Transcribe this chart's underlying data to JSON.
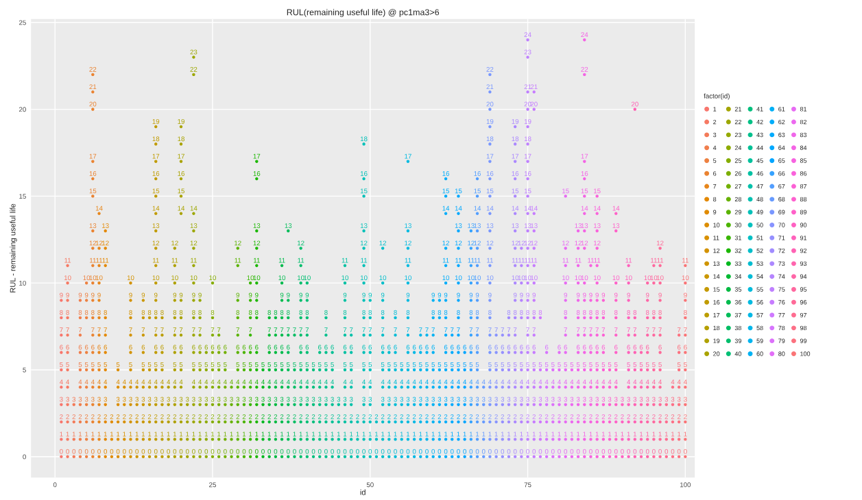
{
  "chart_data": {
    "type": "scatter",
    "title": "RUL(remaining useful life) @ pc1ma3>6",
    "xlabel": "id",
    "ylabel": "RUL - remaining useful life",
    "legend_title": "factor(id)",
    "xlim": [
      -3.8,
      101.5
    ],
    "xticks": [
      0,
      25,
      50,
      75,
      100
    ],
    "ylim": [
      -1.2,
      25.2
    ],
    "yticks": [
      0,
      5,
      10,
      15,
      20,
      25
    ],
    "grid": true,
    "legend": "right",
    "data_labels": true,
    "marker": "circle",
    "series": [
      {
        "name": "1",
        "color": "#f8766d",
        "x": [
          1,
          1,
          1,
          1,
          1,
          1,
          1,
          1,
          1,
          1
        ],
        "values": [
          0,
          1,
          2,
          3,
          4,
          5,
          6,
          7,
          8,
          9
        ]
      },
      {
        "name": "2",
        "color": "#f67963",
        "x": [
          2,
          2,
          2,
          2,
          2,
          2,
          2,
          2,
          2,
          2,
          2,
          2
        ],
        "values": [
          0,
          1,
          2,
          3,
          4,
          5,
          6,
          7,
          8,
          9,
          10,
          11
        ]
      },
      {
        "name": "3",
        "color": "#f37b59",
        "x": [
          3,
          3,
          3,
          3
        ],
        "values": [
          0,
          1,
          2,
          3
        ]
      },
      {
        "name": "4",
        "color": "#f07e4d",
        "x": [
          4,
          4,
          4,
          4,
          4,
          4,
          4,
          4,
          4,
          4
        ],
        "values": [
          0,
          1,
          2,
          3,
          4,
          5,
          6,
          7,
          8,
          9
        ]
      },
      {
        "name": "5",
        "color": "#ed8141",
        "x": [
          5,
          5,
          5,
          5,
          5,
          5,
          5,
          5,
          5,
          5
        ],
        "values": [
          0,
          1,
          2,
          3,
          4,
          5,
          6,
          8,
          9,
          10
        ]
      },
      {
        "name": "6",
        "color": "#ea8331",
        "x": [
          6,
          6,
          6,
          6,
          6,
          6,
          6,
          6,
          6,
          6,
          6,
          6,
          6,
          6,
          6,
          6,
          6,
          6,
          6,
          6
        ],
        "values": [
          0,
          1,
          2,
          3,
          4,
          5,
          6,
          7,
          8,
          9,
          10,
          11,
          12,
          13,
          15,
          16,
          17,
          20,
          21,
          22
        ]
      },
      {
        "name": "7",
        "color": "#e7861b",
        "x": [
          7,
          7,
          7,
          7,
          7,
          7,
          7,
          7,
          7,
          7,
          7,
          7,
          7,
          7
        ],
        "values": [
          0,
          1,
          2,
          3,
          4,
          5,
          6,
          7,
          8,
          9,
          10,
          11,
          12,
          14
        ]
      },
      {
        "name": "8",
        "color": "#e38800",
        "x": [
          8,
          8,
          8,
          8,
          8,
          8,
          8,
          8,
          8,
          8,
          8,
          8
        ],
        "values": [
          0,
          1,
          2,
          3,
          4,
          5,
          6,
          7,
          8,
          11,
          12,
          13
        ]
      },
      {
        "name": "9",
        "color": "#e08b00",
        "x": [
          9,
          9,
          9
        ],
        "values": [
          0,
          1,
          2
        ]
      },
      {
        "name": "10",
        "color": "#dc8d00",
        "x": [
          10,
          10,
          10,
          10,
          10,
          10
        ],
        "values": [
          0,
          1,
          2,
          3,
          4,
          5
        ]
      },
      {
        "name": "11",
        "color": "#d89000",
        "x": [
          11,
          11,
          11,
          11,
          11
        ],
        "values": [
          0,
          1,
          2,
          3,
          4
        ]
      },
      {
        "name": "12",
        "color": "#d39200",
        "x": [
          12,
          12,
          12,
          12,
          12,
          12,
          12,
          12,
          12,
          12,
          12
        ],
        "values": [
          0,
          1,
          2,
          3,
          4,
          5,
          6,
          7,
          8,
          9,
          10
        ]
      },
      {
        "name": "13",
        "color": "#cf9400",
        "x": [
          13,
          13,
          13,
          13,
          13
        ],
        "values": [
          0,
          1,
          2,
          3,
          4
        ]
      },
      {
        "name": "14",
        "color": "#ca9700",
        "x": [
          14,
          14,
          14,
          14,
          14,
          14,
          14,
          14,
          14,
          14
        ],
        "values": [
          0,
          1,
          2,
          3,
          4,
          5,
          6,
          7,
          8,
          9
        ]
      },
      {
        "name": "15",
        "color": "#c59900",
        "x": [
          15,
          15,
          15,
          15,
          15,
          15,
          15
        ],
        "values": [
          0,
          1,
          2,
          3,
          4,
          5,
          8
        ]
      },
      {
        "name": "16",
        "color": "#c09b00",
        "x": [
          16,
          16,
          16,
          16,
          16,
          16,
          16,
          16,
          16,
          16,
          16,
          16,
          16,
          16,
          16,
          16,
          16,
          16,
          16,
          16
        ],
        "values": [
          0,
          1,
          2,
          3,
          4,
          5,
          6,
          7,
          8,
          9,
          10,
          11,
          12,
          13,
          14,
          15,
          16,
          17,
          18,
          19
        ]
      },
      {
        "name": "17",
        "color": "#bb9d00",
        "x": [
          17,
          17,
          17,
          17,
          17,
          17,
          17,
          17,
          17
        ],
        "values": [
          0,
          1,
          2,
          3,
          4,
          5,
          6,
          7,
          8
        ]
      },
      {
        "name": "18",
        "color": "#b59f00",
        "x": [
          18,
          18,
          18,
          18,
          18
        ],
        "values": [
          0,
          1,
          2,
          3,
          4
        ]
      },
      {
        "name": "19",
        "color": "#afa100",
        "x": [
          19,
          19,
          19,
          19,
          19,
          19,
          19,
          19,
          19,
          19,
          19,
          19,
          19
        ],
        "values": [
          0,
          1,
          2,
          3,
          4,
          5,
          6,
          7,
          8,
          9,
          10,
          11,
          12
        ]
      },
      {
        "name": "20",
        "color": "#a9a300",
        "x": [
          20,
          20,
          20,
          20,
          20,
          20,
          20,
          20,
          20,
          20,
          20,
          20,
          20,
          20,
          20,
          20
        ],
        "values": [
          0,
          1,
          2,
          3,
          4,
          5,
          6,
          7,
          8,
          9,
          14,
          15,
          16,
          17,
          18,
          19
        ]
      },
      {
        "name": "21",
        "color": "#a3a500",
        "x": [
          21,
          21,
          21,
          21
        ],
        "values": [
          0,
          1,
          2,
          3
        ]
      },
      {
        "name": "22",
        "color": "#9ca700",
        "x": [
          22,
          22,
          22,
          22,
          22,
          22,
          22,
          22,
          22,
          22,
          22,
          22,
          22,
          22,
          22,
          22,
          22
        ],
        "values": [
          0,
          1,
          2,
          3,
          4,
          5,
          6,
          7,
          8,
          9,
          10,
          11,
          12,
          13,
          14,
          22,
          23
        ]
      },
      {
        "name": "23",
        "color": "#95a900",
        "x": [
          23,
          23,
          23,
          23,
          23,
          23,
          23,
          23,
          23,
          23
        ],
        "values": [
          0,
          1,
          2,
          3,
          4,
          5,
          6,
          7,
          8,
          9
        ]
      },
      {
        "name": "24",
        "color": "#8dab00",
        "x": [
          24,
          24,
          24,
          24,
          24,
          24,
          24
        ],
        "values": [
          0,
          1,
          2,
          3,
          4,
          5,
          6
        ]
      },
      {
        "name": "25",
        "color": "#85ad00",
        "x": [
          25,
          25,
          25,
          25,
          25,
          25,
          25,
          25,
          25,
          25
        ],
        "values": [
          0,
          1,
          2,
          3,
          4,
          5,
          6,
          7,
          8,
          10
        ]
      },
      {
        "name": "26",
        "color": "#7cae00",
        "x": [
          26,
          26,
          26,
          26,
          26,
          26,
          26,
          26
        ],
        "values": [
          0,
          1,
          2,
          3,
          4,
          5,
          6,
          7
        ]
      },
      {
        "name": "27",
        "color": "#72b000",
        "x": [
          27,
          27,
          27,
          27,
          27,
          27,
          27
        ],
        "values": [
          0,
          1,
          2,
          3,
          4,
          5,
          6
        ]
      },
      {
        "name": "28",
        "color": "#67b100",
        "x": [
          28,
          28,
          28,
          28,
          28
        ],
        "values": [
          0,
          1,
          2,
          3,
          4
        ]
      },
      {
        "name": "29",
        "color": "#5bb300",
        "x": [
          29,
          29,
          29,
          29,
          29,
          29,
          29,
          29,
          29,
          29,
          29,
          29
        ],
        "values": [
          0,
          1,
          2,
          3,
          4,
          5,
          6,
          7,
          8,
          9,
          11,
          12
        ]
      },
      {
        "name": "30",
        "color": "#4cb400",
        "x": [
          30,
          30,
          30,
          30,
          30,
          30,
          30
        ],
        "values": [
          0,
          1,
          2,
          3,
          4,
          5,
          6
        ]
      },
      {
        "name": "31",
        "color": "#39b600",
        "x": [
          31,
          31,
          31,
          31,
          31,
          31,
          31,
          31,
          31,
          31,
          31
        ],
        "values": [
          0,
          1,
          2,
          3,
          4,
          5,
          6,
          7,
          8,
          9,
          10
        ]
      },
      {
        "name": "32",
        "color": "#1bb700",
        "x": [
          32,
          32,
          32,
          32,
          32,
          32,
          32,
          32,
          32,
          32,
          32,
          32,
          32,
          32,
          32
        ],
        "values": [
          0,
          1,
          2,
          3,
          4,
          5,
          6,
          8,
          9,
          10,
          11,
          12,
          13,
          16,
          17
        ]
      },
      {
        "name": "33",
        "color": "#00b81f",
        "x": [
          33,
          33,
          33,
          33,
          33,
          33
        ],
        "values": [
          0,
          1,
          2,
          3,
          4,
          5
        ]
      },
      {
        "name": "34",
        "color": "#00b933",
        "x": [
          34,
          34,
          34,
          34,
          34,
          34,
          34,
          34,
          34
        ],
        "values": [
          0,
          1,
          2,
          3,
          4,
          5,
          6,
          7,
          8
        ]
      },
      {
        "name": "35",
        "color": "#00ba42",
        "x": [
          35,
          35,
          35,
          35,
          35,
          35,
          35,
          35,
          35
        ],
        "values": [
          0,
          1,
          2,
          3,
          4,
          5,
          6,
          7,
          8
        ]
      },
      {
        "name": "36",
        "color": "#00bb4e",
        "x": [
          36,
          36,
          36,
          36,
          36,
          36,
          36,
          36,
          36,
          36,
          36,
          36
        ],
        "values": [
          0,
          1,
          2,
          3,
          4,
          5,
          6,
          7,
          8,
          9,
          10,
          11
        ]
      },
      {
        "name": "37",
        "color": "#00bc59",
        "x": [
          37,
          37,
          37,
          37,
          37,
          37,
          37,
          37,
          37,
          37,
          37
        ],
        "values": [
          0,
          1,
          2,
          3,
          4,
          5,
          6,
          7,
          8,
          9,
          13
        ]
      },
      {
        "name": "38",
        "color": "#00bd63",
        "x": [
          38,
          38,
          38,
          38,
          38,
          38,
          38
        ],
        "values": [
          0,
          1,
          2,
          3,
          4,
          5,
          7
        ]
      },
      {
        "name": "39",
        "color": "#00be6c",
        "x": [
          39,
          39,
          39,
          39,
          39,
          39,
          39,
          39,
          39,
          39,
          39,
          39,
          39
        ],
        "values": [
          0,
          1,
          2,
          3,
          4,
          5,
          6,
          7,
          8,
          9,
          10,
          11,
          12
        ]
      },
      {
        "name": "40",
        "color": "#00bf75",
        "x": [
          40,
          40,
          40,
          40,
          40,
          40,
          40,
          40,
          40,
          40,
          40
        ],
        "values": [
          0,
          1,
          2,
          3,
          4,
          5,
          6,
          7,
          8,
          9,
          10
        ]
      },
      {
        "name": "41",
        "color": "#00bf7d",
        "x": [
          41,
          41,
          41,
          41,
          41,
          41
        ],
        "values": [
          0,
          1,
          2,
          3,
          4,
          5
        ]
      },
      {
        "name": "42",
        "color": "#00c085",
        "x": [
          42,
          42,
          42,
          42,
          42,
          42,
          42
        ],
        "values": [
          0,
          1,
          2,
          3,
          4,
          5,
          6
        ]
      },
      {
        "name": "43",
        "color": "#00c08d",
        "x": [
          43,
          43,
          43,
          43,
          43,
          43,
          43,
          43,
          43
        ],
        "values": [
          0,
          1,
          2,
          3,
          4,
          5,
          6,
          7,
          8
        ]
      },
      {
        "name": "44",
        "color": "#00c095",
        "x": [
          44,
          44,
          44,
          44,
          44,
          44,
          44
        ],
        "values": [
          0,
          1,
          2,
          3,
          4,
          5,
          6
        ]
      },
      {
        "name": "45",
        "color": "#00c19c",
        "x": [
          45,
          45,
          45,
          45
        ],
        "values": [
          0,
          1,
          2,
          3
        ]
      },
      {
        "name": "46",
        "color": "#00c1a3",
        "x": [
          46,
          46,
          46,
          46,
          46,
          46,
          46,
          46,
          46,
          46,
          46,
          46
        ],
        "values": [
          0,
          1,
          2,
          3,
          4,
          5,
          6,
          7,
          8,
          9,
          10,
          11
        ]
      },
      {
        "name": "47",
        "color": "#00c1aa",
        "x": [
          47,
          47,
          47,
          47,
          47,
          47,
          47,
          47
        ],
        "values": [
          0,
          1,
          2,
          3,
          4,
          5,
          6,
          7
        ]
      },
      {
        "name": "48",
        "color": "#00c0b1",
        "x": [
          48,
          48,
          48
        ],
        "values": [
          0,
          1,
          2
        ]
      },
      {
        "name": "49",
        "color": "#00c0b8",
        "x": [
          49,
          49,
          49,
          49,
          49,
          49,
          49,
          49,
          49,
          49,
          49,
          49,
          49,
          49,
          49,
          49,
          49
        ],
        "values": [
          0,
          1,
          2,
          3,
          4,
          5,
          6,
          7,
          8,
          9,
          10,
          11,
          12,
          13,
          15,
          16,
          18
        ]
      },
      {
        "name": "50",
        "color": "#00c0be",
        "x": [
          50,
          50,
          50,
          50,
          50,
          50,
          50,
          50,
          50,
          50
        ],
        "values": [
          0,
          1,
          2,
          3,
          4,
          5,
          6,
          7,
          8,
          9
        ]
      },
      {
        "name": "51",
        "color": "#00bfc4",
        "x": [
          51,
          51,
          51
        ],
        "values": [
          0,
          1,
          2
        ]
      },
      {
        "name": "52",
        "color": "#00beca",
        "x": [
          52,
          52,
          52,
          52,
          52,
          52,
          52,
          52,
          52,
          52,
          52,
          52
        ],
        "values": [
          0,
          1,
          2,
          3,
          4,
          5,
          6,
          7,
          8,
          9,
          10,
          12
        ]
      },
      {
        "name": "53",
        "color": "#00bdd0",
        "x": [
          53,
          53,
          53,
          53,
          53,
          53,
          53
        ],
        "values": [
          0,
          1,
          2,
          3,
          4,
          5,
          6
        ]
      },
      {
        "name": "54",
        "color": "#00bcd6",
        "x": [
          54,
          54,
          54,
          54,
          54,
          54,
          54,
          54,
          54
        ],
        "values": [
          0,
          1,
          2,
          3,
          4,
          5,
          6,
          7,
          8
        ]
      },
      {
        "name": "55",
        "color": "#00bbdb",
        "x": [
          55,
          55,
          55,
          55,
          55,
          55
        ],
        "values": [
          0,
          1,
          2,
          3,
          4,
          5
        ]
      },
      {
        "name": "56",
        "color": "#00bae0",
        "x": [
          56,
          56,
          56,
          56,
          56,
          56,
          56,
          56,
          56,
          56,
          56,
          56,
          56,
          56,
          56
        ],
        "values": [
          0,
          1,
          2,
          3,
          4,
          5,
          6,
          7,
          8,
          9,
          10,
          11,
          12,
          13,
          17
        ]
      },
      {
        "name": "57",
        "color": "#00b8e5",
        "x": [
          57,
          57,
          57,
          57,
          57,
          57,
          57
        ],
        "values": [
          0,
          1,
          2,
          3,
          4,
          5,
          6
        ]
      },
      {
        "name": "58",
        "color": "#00b6ea",
        "x": [
          58,
          58,
          58,
          58,
          58,
          58,
          58,
          58
        ],
        "values": [
          0,
          1,
          2,
          3,
          4,
          5,
          6,
          7
        ]
      },
      {
        "name": "59",
        "color": "#00b4ef",
        "x": [
          59,
          59,
          59,
          59,
          59,
          59,
          59,
          59
        ],
        "values": [
          0,
          1,
          2,
          3,
          4,
          5,
          6,
          7
        ]
      },
      {
        "name": "60",
        "color": "#00b2f3",
        "x": [
          60,
          60,
          60,
          60,
          60,
          60,
          60,
          60,
          60,
          60
        ],
        "values": [
          0,
          1,
          2,
          3,
          4,
          5,
          6,
          7,
          8,
          9
        ]
      },
      {
        "name": "61",
        "color": "#00b0f6",
        "x": [
          61,
          61,
          61,
          61,
          61,
          61,
          61,
          61
        ],
        "values": [
          0,
          1,
          2,
          3,
          4,
          5,
          8,
          9
        ]
      },
      {
        "name": "62",
        "color": "#00adfa",
        "x": [
          62,
          62,
          62,
          62,
          62,
          62,
          62,
          62,
          62,
          62,
          62,
          62,
          62,
          62,
          62,
          62
        ],
        "values": [
          0,
          1,
          2,
          3,
          4,
          5,
          6,
          7,
          8,
          9,
          10,
          11,
          12,
          14,
          15,
          16
        ]
      },
      {
        "name": "63",
        "color": "#00abfd",
        "x": [
          63,
          63,
          63,
          63,
          63,
          63,
          63,
          63
        ],
        "values": [
          0,
          1,
          2,
          3,
          4,
          5,
          6,
          7
        ]
      },
      {
        "name": "64",
        "color": "#00a8ff",
        "x": [
          64,
          64,
          64,
          64,
          64,
          64,
          64,
          64,
          64,
          64,
          64,
          64,
          64,
          64,
          64,
          64
        ],
        "values": [
          0,
          1,
          2,
          3,
          4,
          5,
          6,
          7,
          8,
          9,
          10,
          11,
          12,
          13,
          14,
          15
        ]
      },
      {
        "name": "65",
        "color": "#00a5ff",
        "x": [
          65,
          65,
          65,
          65,
          65,
          65,
          65
        ],
        "values": [
          0,
          1,
          2,
          3,
          4,
          5,
          6
        ]
      },
      {
        "name": "66",
        "color": "#35a2ff",
        "x": [
          66,
          66,
          66,
          66,
          66,
          66,
          66,
          66,
          66,
          66,
          66,
          66,
          66,
          66
        ],
        "values": [
          0,
          1,
          2,
          3,
          4,
          5,
          6,
          7,
          8,
          9,
          10,
          11,
          12,
          13
        ]
      },
      {
        "name": "67",
        "color": "#529eff",
        "x": [
          67,
          67,
          67,
          67,
          67,
          67,
          67,
          67,
          67,
          67,
          67,
          67,
          67,
          67,
          67,
          67,
          67
        ],
        "values": [
          0,
          1,
          2,
          3,
          4,
          5,
          6,
          7,
          8,
          9,
          10,
          11,
          12,
          13,
          14,
          15,
          16
        ]
      },
      {
        "name": "68",
        "color": "#679bff",
        "x": [
          68,
          68,
          68,
          68,
          68
        ],
        "values": [
          0,
          1,
          2,
          3,
          4
        ]
      },
      {
        "name": "69",
        "color": "#7997ff",
        "x": [
          69,
          69,
          69,
          69,
          69,
          69,
          69,
          69,
          69,
          69,
          69,
          69,
          69,
          69,
          69,
          69,
          69,
          69,
          69,
          69,
          69,
          69,
          69
        ],
        "values": [
          0,
          1,
          2,
          3,
          4,
          5,
          6,
          7,
          8,
          9,
          10,
          11,
          12,
          13,
          14,
          15,
          16,
          17,
          18,
          19,
          20,
          21,
          22
        ]
      },
      {
        "name": "70",
        "color": "#8893ff",
        "x": [
          70,
          70,
          70,
          70,
          70,
          70,
          70,
          70
        ],
        "values": [
          0,
          1,
          2,
          3,
          4,
          5,
          6,
          7
        ]
      },
      {
        "name": "71",
        "color": "#9590ff",
        "x": [
          71,
          71,
          71,
          71,
          71,
          71,
          71,
          71
        ],
        "values": [
          0,
          1,
          2,
          3,
          4,
          5,
          6,
          7
        ]
      },
      {
        "name": "72",
        "color": "#a18cff",
        "x": [
          72,
          72,
          72,
          72,
          72,
          72,
          72,
          72,
          72
        ],
        "values": [
          0,
          1,
          2,
          3,
          4,
          5,
          6,
          7,
          8
        ]
      },
      {
        "name": "73",
        "color": "#ac88ff",
        "x": [
          73,
          73,
          73,
          73,
          73,
          73,
          73,
          73,
          73,
          73,
          73,
          73,
          73,
          73,
          73,
          73,
          73,
          73,
          73,
          73
        ],
        "values": [
          0,
          1,
          2,
          3,
          4,
          5,
          6,
          7,
          8,
          9,
          10,
          11,
          12,
          13,
          14,
          15,
          16,
          17,
          18,
          19
        ]
      },
      {
        "name": "74",
        "color": "#b584ff",
        "x": [
          74,
          74,
          74,
          74,
          74,
          74,
          74,
          74,
          74,
          74,
          74,
          74
        ],
        "values": [
          0,
          1,
          2,
          3,
          4,
          5,
          6,
          8,
          9,
          10,
          11,
          12
        ]
      },
      {
        "name": "75",
        "color": "#bf80ff",
        "x": [
          75,
          75,
          75,
          75,
          75,
          75,
          75,
          75,
          75,
          75,
          75,
          75,
          75,
          75,
          75,
          75,
          75,
          75,
          75,
          75,
          75,
          75,
          75,
          75
        ],
        "values": [
          0,
          1,
          2,
          3,
          4,
          5,
          6,
          7,
          8,
          9,
          10,
          11,
          12,
          13,
          14,
          15,
          16,
          17,
          18,
          19,
          20,
          21,
          23,
          24
        ]
      },
      {
        "name": "76",
        "color": "#c77cff",
        "x": [
          76,
          76,
          76,
          76,
          76,
          76,
          76,
          76,
          76,
          76,
          76,
          76,
          76,
          76,
          76,
          76,
          76
        ],
        "values": [
          0,
          1,
          2,
          3,
          4,
          5,
          6,
          7,
          8,
          9,
          10,
          11,
          12,
          13,
          14,
          20,
          21
        ]
      },
      {
        "name": "77",
        "color": "#cf78ff",
        "x": [
          77,
          77,
          77,
          77,
          77,
          77,
          77
        ],
        "values": [
          0,
          1,
          2,
          3,
          4,
          5,
          8
        ]
      },
      {
        "name": "78",
        "color": "#d675fe",
        "x": [
          78,
          78,
          78,
          78,
          78,
          78,
          78
        ],
        "values": [
          0,
          1,
          2,
          3,
          4,
          5,
          6
        ]
      },
      {
        "name": "79",
        "color": "#dc71fa",
        "x": [
          79,
          79,
          79,
          79,
          79,
          79
        ],
        "values": [
          0,
          1,
          2,
          3,
          4,
          5
        ]
      },
      {
        "name": "80",
        "color": "#e26ef7",
        "x": [
          80,
          80,
          80,
          80,
          80,
          80,
          80
        ],
        "values": [
          0,
          1,
          2,
          3,
          4,
          5,
          6
        ]
      },
      {
        "name": "81",
        "color": "#e76bf3",
        "x": [
          81,
          81,
          81,
          81,
          81,
          81,
          81,
          81,
          81,
          81,
          81,
          81,
          81,
          81
        ],
        "values": [
          0,
          1,
          2,
          3,
          4,
          5,
          6,
          7,
          8,
          9,
          10,
          11,
          12,
          15
        ]
      },
      {
        "name": "82",
        "color": "#ec69ef",
        "x": [
          82,
          82,
          82,
          82,
          82,
          82
        ],
        "values": [
          0,
          1,
          2,
          3,
          4,
          5
        ]
      },
      {
        "name": "83",
        "color": "#f066ea",
        "x": [
          83,
          83,
          83,
          83,
          83,
          83,
          83,
          83,
          83,
          83,
          83,
          83,
          83,
          83
        ],
        "values": [
          0,
          1,
          2,
          3,
          4,
          5,
          6,
          7,
          8,
          9,
          10,
          11,
          12,
          13
        ]
      },
      {
        "name": "84",
        "color": "#f464e5",
        "x": [
          84,
          84,
          84,
          84,
          84,
          84,
          84,
          84,
          84,
          84,
          84,
          84,
          84,
          84,
          84,
          84,
          84,
          84,
          84
        ],
        "values": [
          0,
          1,
          2,
          3,
          4,
          5,
          6,
          7,
          8,
          9,
          10,
          12,
          13,
          14,
          15,
          16,
          17,
          22,
          24
        ]
      },
      {
        "name": "85",
        "color": "#f763e0",
        "x": [
          85,
          85,
          85,
          85,
          85,
          85,
          85,
          85,
          85,
          85,
          85
        ],
        "values": [
          0,
          1,
          2,
          3,
          4,
          5,
          6,
          7,
          8,
          9,
          11
        ]
      },
      {
        "name": "86",
        "color": "#fa62db",
        "x": [
          86,
          86,
          86,
          86,
          86,
          86,
          86,
          86,
          86,
          86,
          86,
          86,
          86,
          86,
          86,
          86
        ],
        "values": [
          0,
          1,
          2,
          3,
          4,
          5,
          6,
          7,
          8,
          9,
          10,
          11,
          12,
          13,
          14,
          15
        ]
      },
      {
        "name": "87",
        "color": "#fc61d5",
        "x": [
          87,
          87,
          87,
          87,
          87,
          87,
          87,
          87,
          87,
          87
        ],
        "values": [
          0,
          1,
          2,
          3,
          4,
          5,
          6,
          7,
          8,
          9
        ]
      },
      {
        "name": "88",
        "color": "#fe61cf",
        "x": [
          88,
          88,
          88,
          88,
          88,
          88
        ],
        "values": [
          0,
          1,
          2,
          3,
          4,
          5
        ]
      },
      {
        "name": "89",
        "color": "#ff61c9",
        "x": [
          89,
          89,
          89,
          89,
          89,
          89,
          89,
          89,
          89,
          89,
          89,
          89,
          89
        ],
        "values": [
          0,
          1,
          2,
          3,
          4,
          5,
          6,
          7,
          8,
          9,
          10,
          13,
          14
        ]
      },
      {
        "name": "90",
        "color": "#ff61c2",
        "x": [
          90,
          90,
          90,
          90
        ],
        "values": [
          0,
          1,
          2,
          3
        ]
      },
      {
        "name": "91",
        "color": "#ff62bc",
        "x": [
          91,
          91,
          91,
          91,
          91,
          91,
          91,
          91,
          91,
          91,
          91,
          91
        ],
        "values": [
          0,
          1,
          2,
          3,
          4,
          5,
          6,
          7,
          8,
          9,
          10,
          11
        ]
      },
      {
        "name": "92",
        "color": "#ff63b5",
        "x": [
          92,
          92,
          92,
          92,
          92,
          92,
          92,
          92,
          92,
          92
        ],
        "values": [
          0,
          1,
          2,
          3,
          4,
          5,
          6,
          7,
          8,
          20
        ]
      },
      {
        "name": "93",
        "color": "#ff65ae",
        "x": [
          93,
          93,
          93,
          93,
          93,
          93,
          93
        ],
        "values": [
          0,
          1,
          2,
          3,
          4,
          5,
          6
        ]
      },
      {
        "name": "94",
        "color": "#ff66a7",
        "x": [
          94,
          94,
          94,
          94,
          94,
          94,
          94,
          94,
          94,
          94,
          94
        ],
        "values": [
          0,
          1,
          2,
          3,
          4,
          5,
          6,
          7,
          8,
          9,
          10
        ]
      },
      {
        "name": "95",
        "color": "#ff689f",
        "x": [
          95,
          95,
          95,
          95,
          95,
          95,
          95,
          95,
          95,
          95
        ],
        "values": [
          0,
          1,
          2,
          3,
          4,
          5,
          7,
          8,
          10,
          11
        ]
      },
      {
        "name": "96",
        "color": "#ff6a98",
        "x": [
          96,
          96,
          96,
          96,
          96,
          96,
          96,
          96,
          96,
          96,
          96,
          96,
          96
        ],
        "values": [
          0,
          1,
          2,
          3,
          4,
          5,
          6,
          7,
          8,
          9,
          10,
          11,
          12
        ]
      },
      {
        "name": "97",
        "color": "#ff6c90",
        "x": [
          97,
          97,
          97,
          97
        ],
        "values": [
          0,
          1,
          2,
          3
        ]
      },
      {
        "name": "98",
        "color": "#fd6f87",
        "x": [
          98,
          98,
          98,
          98,
          98
        ],
        "values": [
          0,
          1,
          2,
          3,
          4
        ]
      },
      {
        "name": "99",
        "color": "#fc717f",
        "x": [
          99,
          99,
          99,
          99,
          99,
          99,
          99,
          99
        ],
        "values": [
          0,
          1,
          2,
          3,
          4,
          5,
          6,
          7
        ]
      },
      {
        "name": "100",
        "color": "#fa7476",
        "x": [
          100,
          100,
          100,
          100,
          100,
          100,
          100,
          100,
          100,
          100,
          100,
          100
        ],
        "values": [
          0,
          1,
          2,
          3,
          4,
          5,
          6,
          7,
          8,
          9,
          10,
          11
        ]
      }
    ]
  }
}
